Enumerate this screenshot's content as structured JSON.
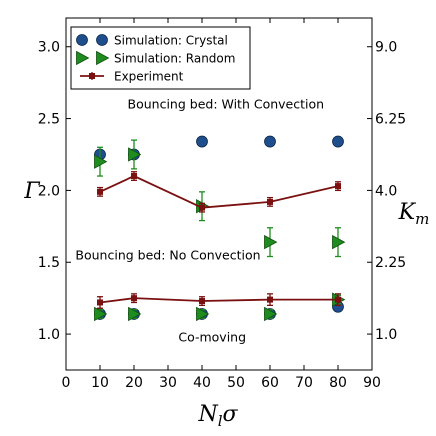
{
  "chart_data": {
    "type": "scatter",
    "xlabel": "N_lσ",
    "ylabel": "Γ",
    "y2label": "K_m",
    "xlim": [
      0,
      90
    ],
    "ylim": [
      0.75,
      3.2
    ],
    "x_ticks": [
      0,
      10,
      20,
      30,
      40,
      50,
      60,
      70,
      80,
      90
    ],
    "y_ticks": [
      1.0,
      1.5,
      2.0,
      2.5,
      3.0
    ],
    "y_tick_labels": [
      "1.0",
      "1.5",
      "2.0",
      "2.5",
      "3.0"
    ],
    "y2_ticks": [
      {
        "label": "1.0",
        "gamma": 1.0
      },
      {
        "label": "2.25",
        "gamma": 1.5
      },
      {
        "label": "4.0",
        "gamma": 2.0
      },
      {
        "label": "6.25",
        "gamma": 2.5
      },
      {
        "label": "9.0",
        "gamma": 3.0
      }
    ],
    "legend_position": "upper-left",
    "series": [
      {
        "name": "Simulation: Crystal",
        "marker": "circle",
        "color": "#1f4e8c",
        "points": [
          {
            "x": 10,
            "y": 2.25,
            "err": 0.03
          },
          {
            "x": 20,
            "y": 2.25,
            "err": 0.03
          },
          {
            "x": 40,
            "y": 2.34,
            "err": 0.03
          },
          {
            "x": 60,
            "y": 2.34,
            "err": 0.03
          },
          {
            "x": 80,
            "y": 2.34,
            "err": 0.03
          },
          {
            "x": 10,
            "y": 1.14,
            "err": 0.02
          },
          {
            "x": 20,
            "y": 1.14,
            "err": 0.02
          },
          {
            "x": 40,
            "y": 1.14,
            "err": 0.02
          },
          {
            "x": 60,
            "y": 1.14,
            "err": 0.02
          },
          {
            "x": 80,
            "y": 1.19,
            "err": 0.02
          }
        ]
      },
      {
        "name": "Simulation: Random",
        "marker": "triangle-right",
        "color": "#1e8c1e",
        "points": [
          {
            "x": 10,
            "y": 2.2,
            "err": 0.1
          },
          {
            "x": 20,
            "y": 2.25,
            "err": 0.1
          },
          {
            "x": 40,
            "y": 1.89,
            "err": 0.1
          },
          {
            "x": 60,
            "y": 1.64,
            "err": 0.1
          },
          {
            "x": 80,
            "y": 1.64,
            "err": 0.1
          },
          {
            "x": 10,
            "y": 1.14,
            "err": 0.03
          },
          {
            "x": 20,
            "y": 1.14,
            "err": 0.03
          },
          {
            "x": 40,
            "y": 1.14,
            "err": 0.03
          },
          {
            "x": 60,
            "y": 1.14,
            "err": 0.03
          },
          {
            "x": 80,
            "y": 1.24,
            "err": 0.03
          }
        ]
      },
      {
        "name": "Experiment",
        "marker": "square-line",
        "color": "#7a1010",
        "lines": [
          [
            {
              "x": 10,
              "y": 1.99,
              "err": 0.03
            },
            {
              "x": 20,
              "y": 2.1,
              "err": 0.03
            },
            {
              "x": 40,
              "y": 1.88,
              "err": 0.03
            },
            {
              "x": 60,
              "y": 1.92,
              "err": 0.03
            },
            {
              "x": 80,
              "y": 2.03,
              "err": 0.03
            }
          ],
          [
            {
              "x": 10,
              "y": 1.22,
              "err": 0.04
            },
            {
              "x": 20,
              "y": 1.25,
              "err": 0.03
            },
            {
              "x": 40,
              "y": 1.23,
              "err": 0.03
            },
            {
              "x": 60,
              "y": 1.24,
              "err": 0.04
            },
            {
              "x": 80,
              "y": 1.24,
              "err": 0.04
            }
          ]
        ]
      }
    ],
    "annotations": [
      {
        "text": "Bouncing bed: With Convection",
        "x": 47,
        "y": 2.57
      },
      {
        "text": "Bouncing bed: No Convection",
        "x": 30,
        "y": 1.52
      },
      {
        "text": "Co-moving",
        "x": 43,
        "y": 0.95
      }
    ]
  }
}
